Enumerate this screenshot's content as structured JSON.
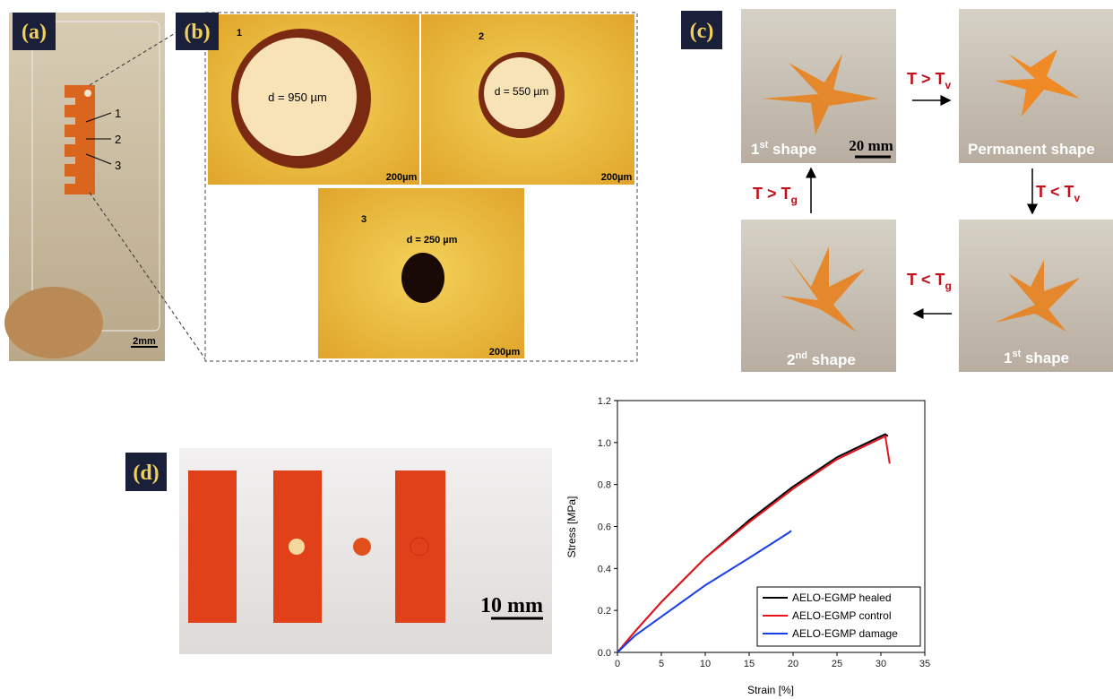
{
  "panels": [
    {
      "label": "(a)",
      "annotations": [
        "1",
        "2",
        "3"
      ],
      "scale_bar": "2mm"
    },
    {
      "label": "(b)",
      "images": [
        {
          "number": "1",
          "diameter": "d = 950 µm",
          "scale_bar": "200µm"
        },
        {
          "number": "2",
          "diameter": "d = 550 µm",
          "scale_bar": "200µm"
        },
        {
          "number": "3",
          "diameter": "d = 250 µm",
          "scale_bar": "200µm"
        }
      ]
    },
    {
      "label": "(c)",
      "scale_bar": "20 mm",
      "shapes": [
        {
          "text": "1",
          "sup": "st",
          "rest": " shape"
        },
        {
          "text": "Permanent shape"
        },
        {
          "text": "2",
          "sup": "nd",
          "rest": " shape"
        },
        {
          "text": "1",
          "sup": "st",
          "rest": " shape"
        }
      ],
      "transitions": [
        {
          "text": "T > T",
          "sub": "v"
        },
        {
          "text": "T < T",
          "sub": "v"
        },
        {
          "text": "T < T",
          "sub": "g"
        },
        {
          "text": "T > T",
          "sub": "g"
        }
      ]
    },
    {
      "label": "(d)",
      "scale_bar": "10 mm"
    }
  ],
  "chart_data": {
    "type": "line",
    "x_label": "Strain [%]",
    "y_label": "Stress [MPa]",
    "xlim": [
      0,
      35
    ],
    "xticks": [
      0,
      5,
      10,
      15,
      20,
      25,
      30,
      35
    ],
    "ylim": [
      0,
      1.2
    ],
    "yticks": [
      {
        "value": 0,
        "label": "0.0"
      },
      0.2,
      0.4,
      0.6,
      0.8,
      {
        "value": 1,
        "label": "1.0"
      },
      1.2
    ],
    "legend": "lower right",
    "series": [
      {
        "name": "AELO-EGMP healed",
        "color": "#000000",
        "x": [
          0,
          2,
          5,
          10,
          15,
          20,
          25,
          28,
          30,
          30.5,
          30.8
        ],
        "values": [
          0,
          0.1,
          0.24,
          0.45,
          0.63,
          0.79,
          0.93,
          0.99,
          1.03,
          1.04,
          1.03
        ]
      },
      {
        "name": "AELO-EGMP control",
        "color": "#e8141c",
        "x": [
          0,
          2,
          5,
          10,
          15,
          20,
          25,
          28,
          30,
          30.5,
          31
        ],
        "values": [
          0,
          0.1,
          0.24,
          0.45,
          0.62,
          0.78,
          0.92,
          0.98,
          1.02,
          1.03,
          0.9
        ]
      },
      {
        "name": "AELO-EGMP damage",
        "color": "#1a3ee8",
        "x": [
          0,
          2,
          5,
          10,
          15,
          19.5,
          19.8
        ],
        "values": [
          0,
          0.08,
          0.17,
          0.32,
          0.45,
          0.57,
          0.58
        ]
      }
    ]
  }
}
